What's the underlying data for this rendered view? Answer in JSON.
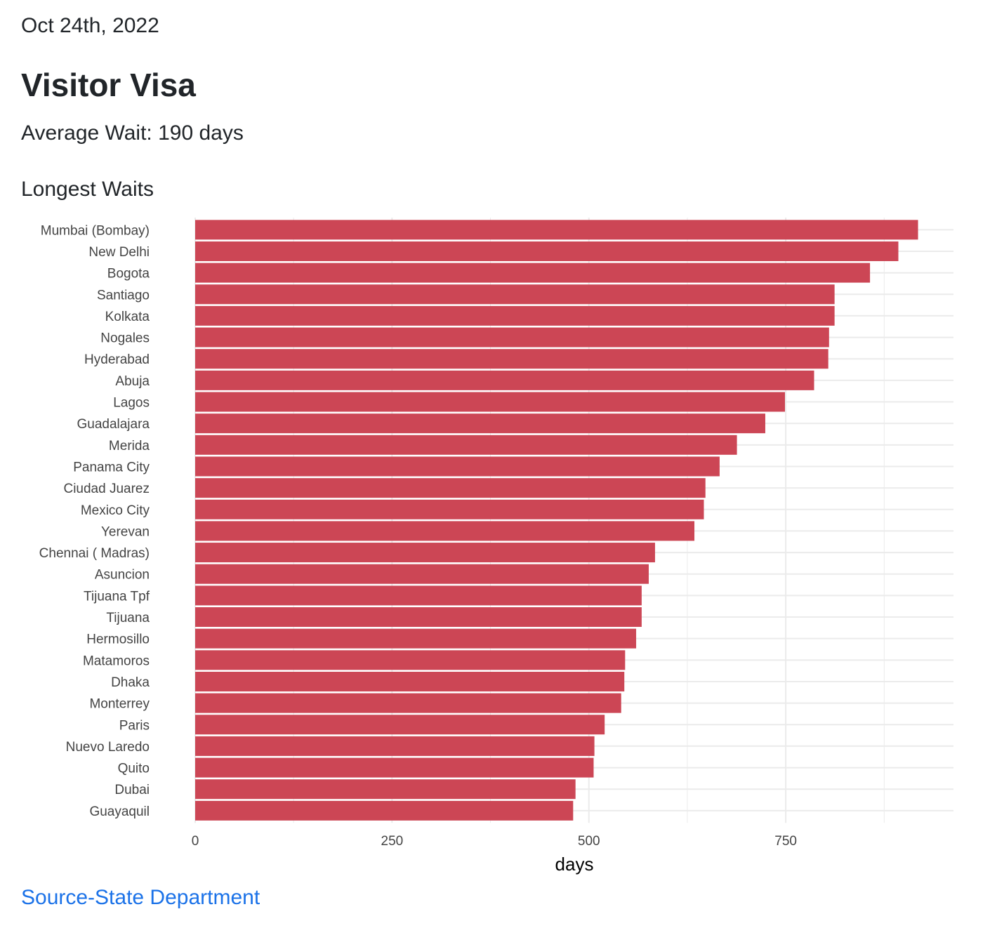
{
  "header": {
    "date": "Oct 24th, 2022",
    "title": "Visitor Visa",
    "average_label": "Average Wait:",
    "average_value": "190 days",
    "subtitle": "Longest Waits"
  },
  "footer": {
    "source_link": "Source-State Department"
  },
  "colors": {
    "bar": "#cc4655",
    "grid": "#ebebeb",
    "link": "#1b72e8"
  },
  "chart_data": {
    "type": "bar",
    "orientation": "horizontal",
    "title": "Longest Waits",
    "xlabel": "days",
    "ylabel": "",
    "xlim": [
      0,
      963
    ],
    "xticks": [
      0,
      250,
      500,
      750
    ],
    "grid": true,
    "categories": [
      "Mumbai (Bombay)",
      "New Delhi",
      "Bogota",
      "Santiago",
      "Kolkata",
      "Nogales",
      "Hyderabad",
      "Abuja",
      "Lagos",
      "Guadalajara",
      "Merida",
      "Panama City",
      "Ciudad Juarez",
      "Mexico City",
      "Yerevan",
      "Chennai ( Madras)",
      "Asuncion",
      "Tijuana Tpf",
      "Tijuana",
      "Hermosillo",
      "Matamoros",
      "Dhaka",
      "Monterrey",
      "Paris",
      "Nuevo Laredo",
      "Quito",
      "Dubai",
      "Guayaquil"
    ],
    "values": [
      918,
      893,
      857,
      812,
      812,
      805,
      804,
      786,
      749,
      724,
      688,
      666,
      648,
      646,
      634,
      584,
      576,
      567,
      567,
      560,
      546,
      545,
      541,
      520,
      507,
      506,
      483,
      480
    ]
  }
}
